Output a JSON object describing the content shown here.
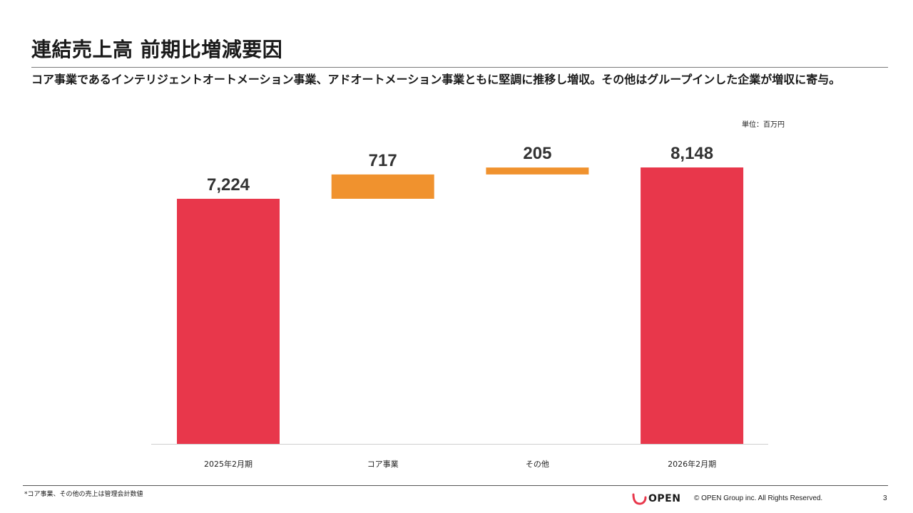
{
  "slide": {
    "title": "連結売上高 前期比増減要因",
    "subtitle": "コア事業であるインテリジェントオートメーション事業、アドオートメーション事業ともに堅調に推移し増収。その他はグループインした企業が増収に寄与。",
    "unit_label": "単位：百万円",
    "footnote": "*コア事業、その他の売上は管理会計数値",
    "logo_text": "OPEN",
    "copyright": "© OPEN Group inc. All Rights Reserved.",
    "page_number": "3"
  },
  "colors": {
    "total_bar": "#E8374B",
    "delta_bar": "#F0922E",
    "logo_accent": "#E8374B",
    "label_text": "#333333"
  },
  "chart_data": {
    "type": "waterfall",
    "title": "",
    "unit": "百万円",
    "ylim": [
      0,
      8148
    ],
    "grid": false,
    "legend": "none",
    "steps": [
      {
        "category": "2025年2月期",
        "kind": "total",
        "value": 7224,
        "label": "7,224"
      },
      {
        "category": "コア事業",
        "kind": "delta",
        "value": 717,
        "label": "717"
      },
      {
        "category": "その他",
        "kind": "delta",
        "value": 205,
        "label": "205"
      },
      {
        "category": "2026年2月期",
        "kind": "total",
        "value": 8148,
        "label": "8,148"
      }
    ]
  }
}
